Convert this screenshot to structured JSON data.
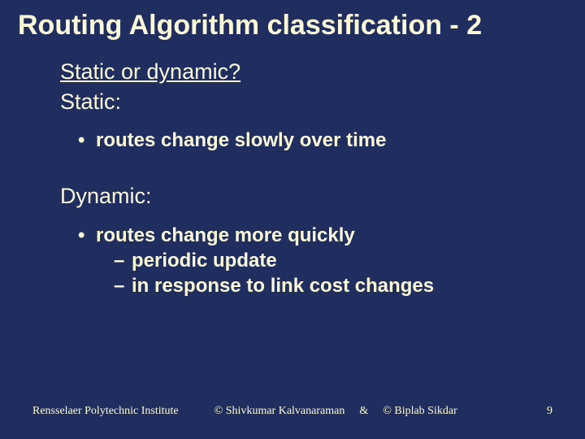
{
  "colors": {
    "background": "#1f2e5e",
    "text": "#fcf9d8"
  },
  "title": "Routing Algorithm classification - 2",
  "section1": {
    "heading_underlined": "Static or dynamic?",
    "subheading": "Static:",
    "bullet": "routes change slowly over time"
  },
  "section2": {
    "subheading": "Dynamic:",
    "bullet": "routes change more quickly",
    "sub_bullets": [
      "periodic update",
      "in response to link cost changes"
    ]
  },
  "footer": {
    "institute": "Rensselaer Polytechnic Institute",
    "copyright1": "© Shivkumar Kalvanaraman",
    "ampersand": "&",
    "copyright2": "© Biplab Sikdar",
    "page_number": "9"
  }
}
